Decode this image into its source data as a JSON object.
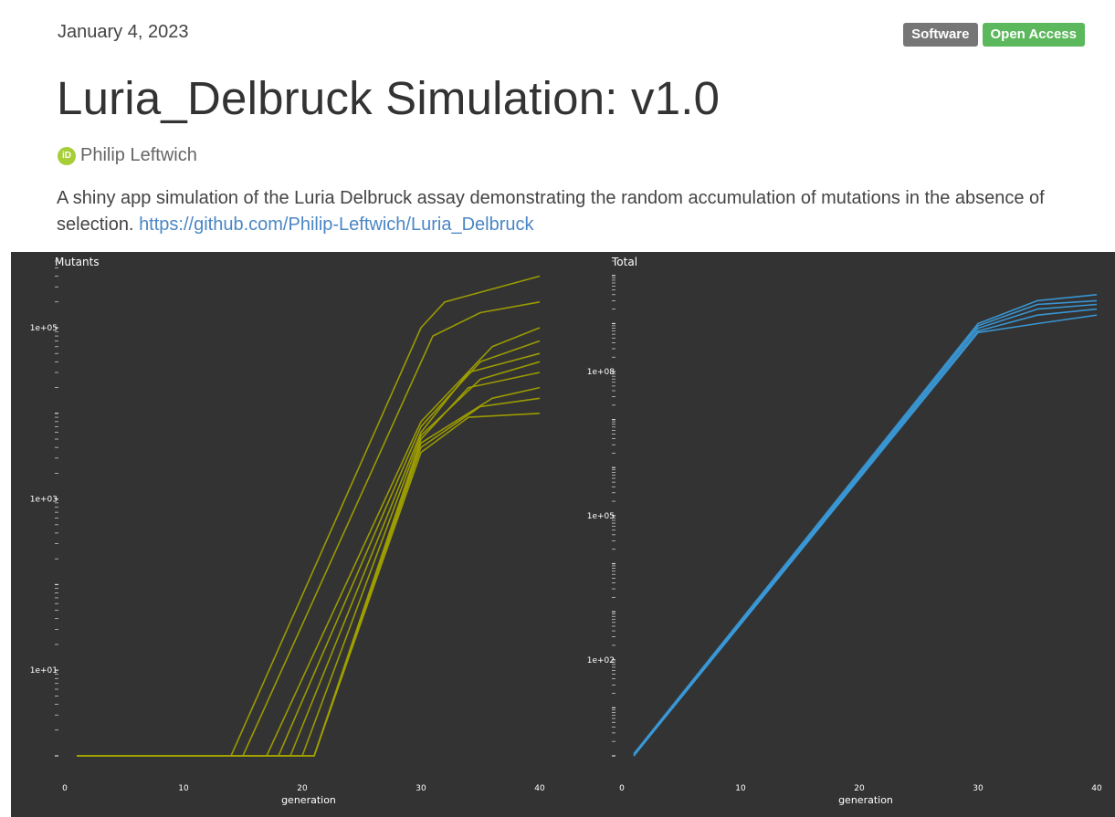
{
  "date": "January 4, 2023",
  "badges": {
    "software": "Software",
    "open_access": "Open Access"
  },
  "title": "Luria_Delbruck Simulation: v1.0",
  "author": {
    "orcid_label": "iD",
    "name": "Philip Leftwich"
  },
  "description": {
    "text": "A shiny app simulation of the Luria Delbruck assay demonstrating the random accumulation of mutations in the absence of selection. ",
    "link_text": "https://github.com/Philip-Leftwich/Luria_Delbruck"
  },
  "colors": {
    "mutants": "#a0a000",
    "total": "#3a9ad9",
    "panel_bg": "#333333"
  },
  "chart_data": [
    {
      "type": "line",
      "title": "Mutants",
      "xlabel": "generation",
      "ylabel": "",
      "xlim": [
        0,
        40
      ],
      "x_ticks": [
        0,
        10,
        20,
        30,
        40
      ],
      "y_scale": "log10",
      "y_ticks": [
        "1e+01",
        "1e+03",
        "1e+05"
      ],
      "ylim": [
        1,
        600000
      ],
      "description_of_series": "many simulated cultures; all start at 1 mutant then rise exponentially",
      "series": [
        {
          "values": [
            [
              1,
              1
            ],
            [
              14,
              1
            ],
            [
              30,
              100000
            ],
            [
              32,
              200000
            ],
            [
              40,
              400000
            ]
          ]
        },
        {
          "values": [
            [
              1,
              1
            ],
            [
              15,
              1
            ],
            [
              31,
              80000
            ],
            [
              35,
              150000
            ],
            [
              40,
              200000
            ]
          ]
        },
        {
          "values": [
            [
              1,
              1
            ],
            [
              17,
              1
            ],
            [
              30,
              8000
            ],
            [
              36,
              60000
            ],
            [
              40,
              100000
            ]
          ]
        },
        {
          "values": [
            [
              1,
              1
            ],
            [
              18,
              1
            ],
            [
              30,
              7000
            ],
            [
              35,
              40000
            ],
            [
              40,
              70000
            ]
          ]
        },
        {
          "values": [
            [
              1,
              1
            ],
            [
              19,
              1
            ],
            [
              30,
              6000
            ],
            [
              34,
              30000
            ],
            [
              40,
              50000
            ]
          ]
        },
        {
          "values": [
            [
              1,
              1
            ],
            [
              20,
              1
            ],
            [
              30,
              5500
            ],
            [
              35,
              25000
            ],
            [
              40,
              40000
            ]
          ]
        },
        {
          "values": [
            [
              1,
              1
            ],
            [
              21,
              1
            ],
            [
              30,
              5000
            ],
            [
              34,
              20000
            ],
            [
              40,
              30000
            ]
          ]
        },
        {
          "values": [
            [
              1,
              1
            ],
            [
              21,
              1
            ],
            [
              30,
              4500
            ],
            [
              36,
              15000
            ],
            [
              40,
              20000
            ]
          ]
        },
        {
          "values": [
            [
              1,
              1
            ],
            [
              21,
              1
            ],
            [
              30,
              4000
            ],
            [
              35,
              12000
            ],
            [
              40,
              15000
            ]
          ]
        },
        {
          "values": [
            [
              1,
              1
            ],
            [
              21,
              1
            ],
            [
              30,
              3500
            ],
            [
              34,
              9000
            ],
            [
              40,
              10000
            ]
          ]
        }
      ]
    },
    {
      "type": "line",
      "title": "Total",
      "xlabel": "generation",
      "ylabel": "",
      "xlim": [
        0,
        40
      ],
      "x_ticks": [
        0,
        10,
        20,
        30,
        40
      ],
      "y_scale": "log10",
      "y_ticks": [
        "1e+02",
        "1e+05",
        "1e+08"
      ],
      "ylim": [
        1,
        20000000000
      ],
      "description_of_series": "many simulated cultures; total population doubling each generation, plateau after 30",
      "series": [
        {
          "values": [
            [
              1,
              1.1
            ],
            [
              30,
              1000000000
            ],
            [
              35,
              3000000000
            ],
            [
              40,
              4000000000
            ]
          ]
        },
        {
          "values": [
            [
              1,
              1
            ],
            [
              30,
              900000000
            ],
            [
              35,
              2500000000
            ],
            [
              40,
              3000000000
            ]
          ]
        },
        {
          "values": [
            [
              1,
              1
            ],
            [
              30,
              800000000
            ],
            [
              35,
              2000000000
            ],
            [
              40,
              2500000000
            ]
          ]
        },
        {
          "values": [
            [
              1,
              1
            ],
            [
              30,
              700000000
            ],
            [
              35,
              1500000000
            ],
            [
              40,
              2000000000
            ]
          ]
        },
        {
          "values": [
            [
              1,
              1
            ],
            [
              30,
              650000000
            ],
            [
              35,
              1000000000
            ],
            [
              40,
              1500000000
            ]
          ]
        }
      ]
    }
  ]
}
